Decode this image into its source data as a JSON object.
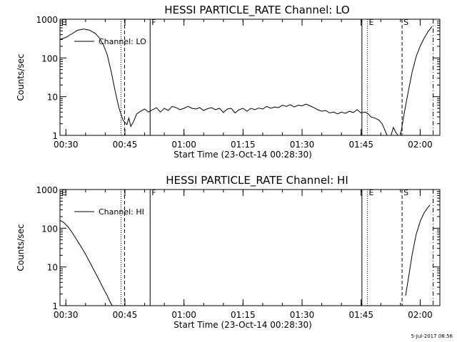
{
  "footer": {
    "timestamp": "5-Jul-2017 08:56"
  },
  "chart_data": [
    {
      "type": "line",
      "title": "HESSI PARTICLE_RATE Channel: LO",
      "xlabel": "Start Time (23-Oct-14 00:28:30)",
      "ylabel": "Counts/sec",
      "yscale": "log",
      "ylim": [
        1,
        1000
      ],
      "xlim_minutes": [
        28.5,
        125
      ],
      "x_ticks": [
        {
          "label": "00:30",
          "minute": 30
        },
        {
          "label": "00:45",
          "minute": 45
        },
        {
          "label": "01:00",
          "minute": 60
        },
        {
          "label": "01:15",
          "minute": 75
        },
        {
          "label": "01:30",
          "minute": 90
        },
        {
          "label": "01:45",
          "minute": 105
        },
        {
          "label": "02:00",
          "minute": 120
        }
      ],
      "y_ticks": [
        {
          "label": "1",
          "value": 1
        },
        {
          "label": "10",
          "value": 10
        },
        {
          "label": "100",
          "value": 100
        },
        {
          "label": "1000",
          "value": 1000
        }
      ],
      "legend": {
        "label": "Channel: LO",
        "placement": "top-left"
      },
      "markers": [
        {
          "label": "E",
          "minute": 28.5,
          "style": "none"
        },
        {
          "label": "",
          "minute": 44.0,
          "style": "dotted"
        },
        {
          "label": "",
          "minute": 44.9,
          "style": "dashed"
        },
        {
          "label": "F",
          "minute": 51.4,
          "style": "solid"
        },
        {
          "label": "",
          "minute": 105.2,
          "style": "solid"
        },
        {
          "label": "E",
          "minute": 106.6,
          "style": "dotted"
        },
        {
          "label": "S",
          "minute": 115.4,
          "style": "dashed"
        },
        {
          "label": "",
          "minute": 123.3,
          "style": "dashdot"
        }
      ],
      "series": [
        {
          "segments": [
            [
              [
                28.5,
                300
              ],
              [
                30,
                340
              ],
              [
                31.5,
                420
              ],
              [
                33,
                520
              ],
              [
                34.5,
                560
              ],
              [
                36,
                520
              ],
              [
                37.5,
                430
              ],
              [
                38.5,
                330
              ],
              [
                39.5,
                220
              ],
              [
                40.5,
                120
              ],
              [
                41.5,
                45
              ],
              [
                42.5,
                14
              ],
              [
                43.5,
                5
              ],
              [
                44.5,
                2.5
              ],
              [
                45.5,
                1.9
              ],
              [
                46,
                2.8
              ],
              [
                46.5,
                1.7
              ],
              [
                47.3,
                2.4
              ],
              [
                48,
                3.6
              ],
              [
                49,
                4.2
              ],
              [
                50,
                4.8
              ],
              [
                51,
                4.0
              ],
              [
                52,
                4.6
              ],
              [
                53,
                5.2
              ],
              [
                54,
                4.0
              ],
              [
                55,
                5.0
              ],
              [
                56,
                4.4
              ],
              [
                57,
                5.6
              ],
              [
                58,
                5.2
              ],
              [
                59,
                4.6
              ],
              [
                60,
                5.0
              ],
              [
                61,
                5.6
              ],
              [
                62,
                5.0
              ],
              [
                63,
                4.8
              ],
              [
                64,
                5.2
              ],
              [
                65,
                4.4
              ],
              [
                66,
                4.9
              ],
              [
                67,
                5.2
              ],
              [
                68,
                4.6
              ],
              [
                69,
                5.0
              ],
              [
                70,
                3.9
              ],
              [
                71,
                4.8
              ],
              [
                72,
                5.0
              ],
              [
                73,
                3.8
              ],
              [
                74,
                4.6
              ],
              [
                75,
                5.0
              ],
              [
                76,
                4.2
              ],
              [
                77,
                5.0
              ],
              [
                78,
                4.6
              ],
              [
                79,
                5.1
              ],
              [
                80,
                4.8
              ],
              [
                81,
                5.6
              ],
              [
                82,
                5.0
              ],
              [
                83,
                5.4
              ],
              [
                84,
                5.2
              ],
              [
                85,
                6.0
              ],
              [
                86,
                5.6
              ],
              [
                87,
                6.2
              ],
              [
                88,
                5.4
              ],
              [
                89,
                6.0
              ],
              [
                90,
                5.8
              ],
              [
                91,
                6.4
              ],
              [
                92,
                5.8
              ],
              [
                93,
                5.2
              ],
              [
                94,
                4.6
              ],
              [
                95,
                4.2
              ],
              [
                96,
                4.4
              ],
              [
                97,
                3.8
              ],
              [
                98,
                4.0
              ],
              [
                99,
                3.6
              ],
              [
                100,
                4.0
              ],
              [
                101,
                3.7
              ],
              [
                102,
                4.2
              ],
              [
                103,
                3.9
              ],
              [
                104,
                4.6
              ],
              [
                105,
                3.8
              ],
              [
                106,
                4.0
              ],
              [
                106.8,
                3.6
              ],
              [
                107.5,
                3.0
              ],
              [
                108.5,
                2.8
              ],
              [
                109.5,
                2.5
              ],
              [
                110.3,
                2.0
              ],
              [
                111,
                1.4
              ],
              [
                111.6,
                1.0
              ]
            ],
            [
              [
                112.6,
                1.0
              ],
              [
                113.2,
                1.6
              ],
              [
                113.8,
                1.2
              ],
              [
                114.4,
                1.0
              ]
            ],
            [
              [
                115.0,
                1.0
              ],
              [
                116,
                4.0
              ],
              [
                117,
                14
              ],
              [
                118,
                45
              ],
              [
                119,
                110
              ],
              [
                120,
                200
              ],
              [
                121,
                320
              ],
              [
                122,
                480
              ],
              [
                123,
                650
              ]
            ]
          ]
        }
      ]
    },
    {
      "type": "line",
      "title": "HESSI PARTICLE_RATE Channel: HI",
      "xlabel": "Start Time (23-Oct-14 00:28:30)",
      "ylabel": "Counts/sec",
      "yscale": "log",
      "ylim": [
        1,
        1000
      ],
      "xlim_minutes": [
        28.5,
        125
      ],
      "x_ticks": [
        {
          "label": "00:30",
          "minute": 30
        },
        {
          "label": "00:45",
          "minute": 45
        },
        {
          "label": "01:00",
          "minute": 60
        },
        {
          "label": "01:15",
          "minute": 75
        },
        {
          "label": "01:30",
          "minute": 90
        },
        {
          "label": "01:45",
          "minute": 105
        },
        {
          "label": "02:00",
          "minute": 120
        }
      ],
      "y_ticks": [
        {
          "label": "1",
          "value": 1
        },
        {
          "label": "10",
          "value": 10
        },
        {
          "label": "100",
          "value": 100
        },
        {
          "label": "1000",
          "value": 1000
        }
      ],
      "legend": {
        "label": "Channel: HI",
        "placement": "top-left"
      },
      "markers": [
        {
          "label": "E",
          "minute": 28.5,
          "style": "none"
        },
        {
          "label": "",
          "minute": 44.0,
          "style": "dotted"
        },
        {
          "label": "",
          "minute": 44.9,
          "style": "dashed"
        },
        {
          "label": "F",
          "minute": 51.4,
          "style": "solid"
        },
        {
          "label": "",
          "minute": 105.2,
          "style": "solid"
        },
        {
          "label": "E",
          "minute": 106.6,
          "style": "dotted"
        },
        {
          "label": "S",
          "minute": 115.4,
          "style": "dashed"
        },
        {
          "label": "",
          "minute": 123.3,
          "style": "dashdot"
        }
      ],
      "series": [
        {
          "segments": [
            [
              [
                28.5,
                160
              ],
              [
                29.5,
                140
              ],
              [
                30.5,
                110
              ],
              [
                31.5,
                80
              ],
              [
                32.5,
                55
              ],
              [
                33.5,
                38
              ],
              [
                34.5,
                26
              ],
              [
                35.5,
                17
              ],
              [
                36.5,
                11
              ],
              [
                37.5,
                7
              ],
              [
                38.5,
                4.5
              ],
              [
                39.5,
                2.8
              ],
              [
                40.5,
                1.8
              ],
              [
                41.3,
                1.2
              ],
              [
                41.8,
                1.0
              ]
            ],
            [
              [
                116.3,
                1.8
              ],
              [
                117,
                5
              ],
              [
                118,
                22
              ],
              [
                119,
                70
              ],
              [
                120,
                150
              ],
              [
                121,
                250
              ],
              [
                122,
                350
              ],
              [
                122.5,
                400
              ]
            ]
          ]
        }
      ]
    }
  ]
}
